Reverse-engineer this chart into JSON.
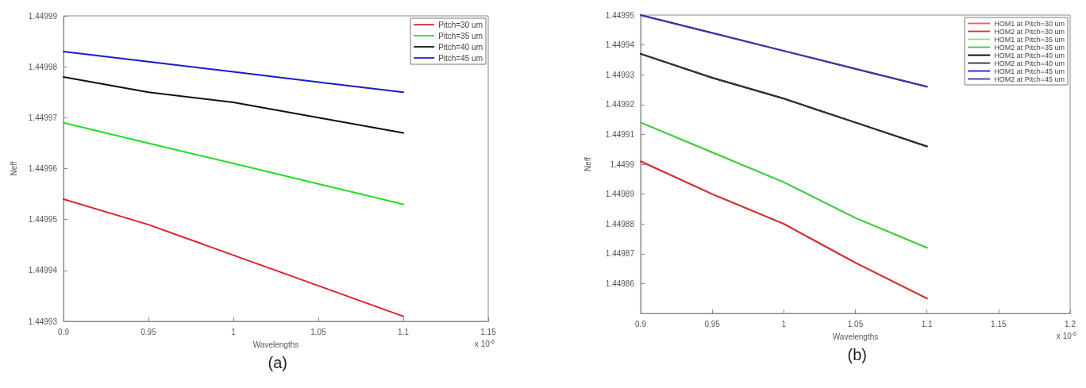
{
  "chart_data": [
    {
      "type": "line",
      "xlabel": "Wavelengths",
      "ylabel": "Neff",
      "x": [
        0.9,
        0.95,
        1.0,
        1.05,
        1.1
      ],
      "series": [
        {
          "name": "Pitch=30 um",
          "color": "#e0202a",
          "values": [
            1.449954,
            1.449949,
            1.449943,
            1.449937,
            1.449931
          ]
        },
        {
          "name": "Pitch=35 um",
          "color": "#22dd22",
          "values": [
            1.449969,
            1.449965,
            1.449961,
            1.449957,
            1.449953
          ]
        },
        {
          "name": "Pitch=40 um",
          "color": "#111111",
          "values": [
            1.449978,
            1.449975,
            1.449973,
            1.44997,
            1.449967
          ]
        },
        {
          "name": "Pitch=45 um",
          "color": "#1a1acc",
          "values": [
            1.449983,
            1.449981,
            1.449979,
            1.449977,
            1.449975
          ]
        }
      ],
      "xlim": [
        0.9,
        1.15
      ],
      "xticks": [
        0.9,
        0.95,
        1,
        1.05,
        1.1,
        1.15
      ],
      "ylim": [
        1.44993,
        1.44999
      ],
      "yticks": [
        1.44993,
        1.44994,
        1.44995,
        1.44996,
        1.44997,
        1.44998,
        1.44999
      ],
      "grid": false,
      "legend": "top right",
      "marker": "none",
      "line_style": "solid",
      "annotations": [
        "x 10$^{-6}$",
        "(a)"
      ]
    },
    {
      "type": "line",
      "xlabel": "Wavelengths",
      "ylabel": "Neff",
      "x": [
        0.9,
        0.95,
        1.0,
        1.05,
        1.1
      ],
      "series": [
        {
          "name": "HOM1 at Pitch=30 um",
          "color": "#ff5068",
          "values": [
            1.449901,
            1.44989,
            1.44988,
            1.449867,
            1.449855
          ]
        },
        {
          "name": "HOM2 at Pitch=30 um",
          "color": "#c83838",
          "values": [
            1.449901,
            1.44989,
            1.44988,
            1.449867,
            1.449855
          ]
        },
        {
          "name": "HOM1 at Pitch=35 um",
          "color": "#88dd88",
          "values": [
            1.449914,
            1.449904,
            1.449894,
            1.449882,
            1.449872
          ]
        },
        {
          "name": "HOM2 at Pitch=35 um",
          "color": "#44cc44",
          "values": [
            1.449914,
            1.449904,
            1.449894,
            1.449882,
            1.449872
          ]
        },
        {
          "name": "HOM1 at Pitch=40 um",
          "color": "#000000",
          "values": [
            1.449937,
            1.449929,
            1.449922,
            1.449914,
            1.449906
          ]
        },
        {
          "name": "HOM2 at Pitch=40 um",
          "color": "#333333",
          "values": [
            1.449937,
            1.449929,
            1.449922,
            1.449914,
            1.449906
          ]
        },
        {
          "name": "HOM1 at Pitch=45 um",
          "color": "#2020dd",
          "values": [
            1.44995,
            1.449944,
            1.449938,
            1.449932,
            1.449926
          ]
        },
        {
          "name": "HOM2 at Pitch=45 um",
          "color": "#3a3a99",
          "values": [
            1.44995,
            1.449944,
            1.449938,
            1.449932,
            1.449926
          ]
        }
      ],
      "xlim": [
        0.9,
        1.2
      ],
      "xticks": [
        0.9,
        0.95,
        1,
        1.05,
        1.1,
        1.15,
        1.2
      ],
      "ylim": [
        1.44985,
        1.44995
      ],
      "yticks": [
        {
          "value": 1.44985,
          "label": null
        },
        1.44986,
        1.44987,
        1.44988,
        1.44989,
        1.4499,
        1.44991,
        1.44992,
        1.44993,
        1.44994,
        1.44995
      ],
      "grid": false,
      "legend": "top right",
      "marker": "none",
      "line_style": "solid",
      "annotations": [
        "x 10$^{-6}$",
        "(b)"
      ]
    }
  ]
}
